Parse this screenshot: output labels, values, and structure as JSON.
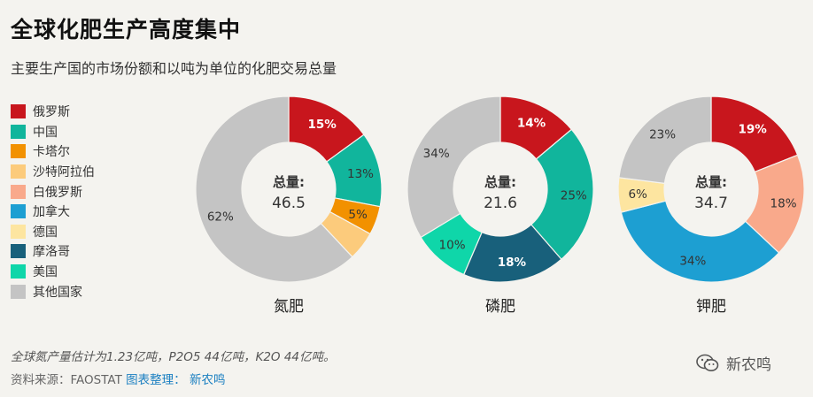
{
  "title": "全球化肥生产高度集中",
  "subtitle": "主要生产国的市场份额和以吨为单位的化肥交易总量",
  "legend": [
    {
      "label": "俄罗斯",
      "color": "#c8161d"
    },
    {
      "label": "中国",
      "color": "#11b59c"
    },
    {
      "label": "卡塔尔",
      "color": "#f29100"
    },
    {
      "label": "沙特阿拉伯",
      "color": "#fccb7c"
    },
    {
      "label": "白俄罗斯",
      "color": "#f9a98b"
    },
    {
      "label": "加拿大",
      "color": "#1d9fd2"
    },
    {
      "label": "德国",
      "color": "#fde5a0"
    },
    {
      "label": "摩洛哥",
      "color": "#18607b"
    },
    {
      "label": "美国",
      "color": "#0fd6a9"
    },
    {
      "label": "其他国家",
      "color": "#c4c4c4"
    }
  ],
  "total_label": "总量:",
  "chart_data": [
    {
      "type": "pie",
      "name": "氮肥",
      "total": "46.5",
      "slices": [
        {
          "country": "俄罗斯",
          "value": 15,
          "label": "15%"
        },
        {
          "country": "中国",
          "value": 13,
          "label": "13%"
        },
        {
          "country": "卡塔尔",
          "value": 5,
          "label": "5%"
        },
        {
          "country": "沙特阿拉伯",
          "value": 5,
          "label": ""
        },
        {
          "country": "其他国家",
          "value": 62,
          "label": "62%"
        }
      ]
    },
    {
      "type": "pie",
      "name": "磷肥",
      "total": "21.6",
      "slices": [
        {
          "country": "俄罗斯",
          "value": 14,
          "label": "14%"
        },
        {
          "country": "中国",
          "value": 25,
          "label": "25%"
        },
        {
          "country": "摩洛哥",
          "value": 18,
          "label": "18%"
        },
        {
          "country": "美国",
          "value": 10,
          "label": "10%"
        },
        {
          "country": "其他国家",
          "value": 34,
          "label": "34%"
        }
      ]
    },
    {
      "type": "pie",
      "name": "钾肥",
      "total": "34.7",
      "slices": [
        {
          "country": "俄罗斯",
          "value": 19,
          "label": "19%"
        },
        {
          "country": "白俄罗斯",
          "value": 18,
          "label": "18%"
        },
        {
          "country": "加拿大",
          "value": 34,
          "label": "34%"
        },
        {
          "country": "德国",
          "value": 6,
          "label": "6%"
        },
        {
          "country": "其他国家",
          "value": 23,
          "label": "23%"
        }
      ]
    }
  ],
  "footnote": "全球氮产量估计为1.23亿吨，P2O5 44亿吨，K2O 44亿吨。",
  "source_text": "资料来源：FAOSTAT ",
  "source_credit": "图表整理： 新农鸣",
  "watermark": "新农鸣"
}
